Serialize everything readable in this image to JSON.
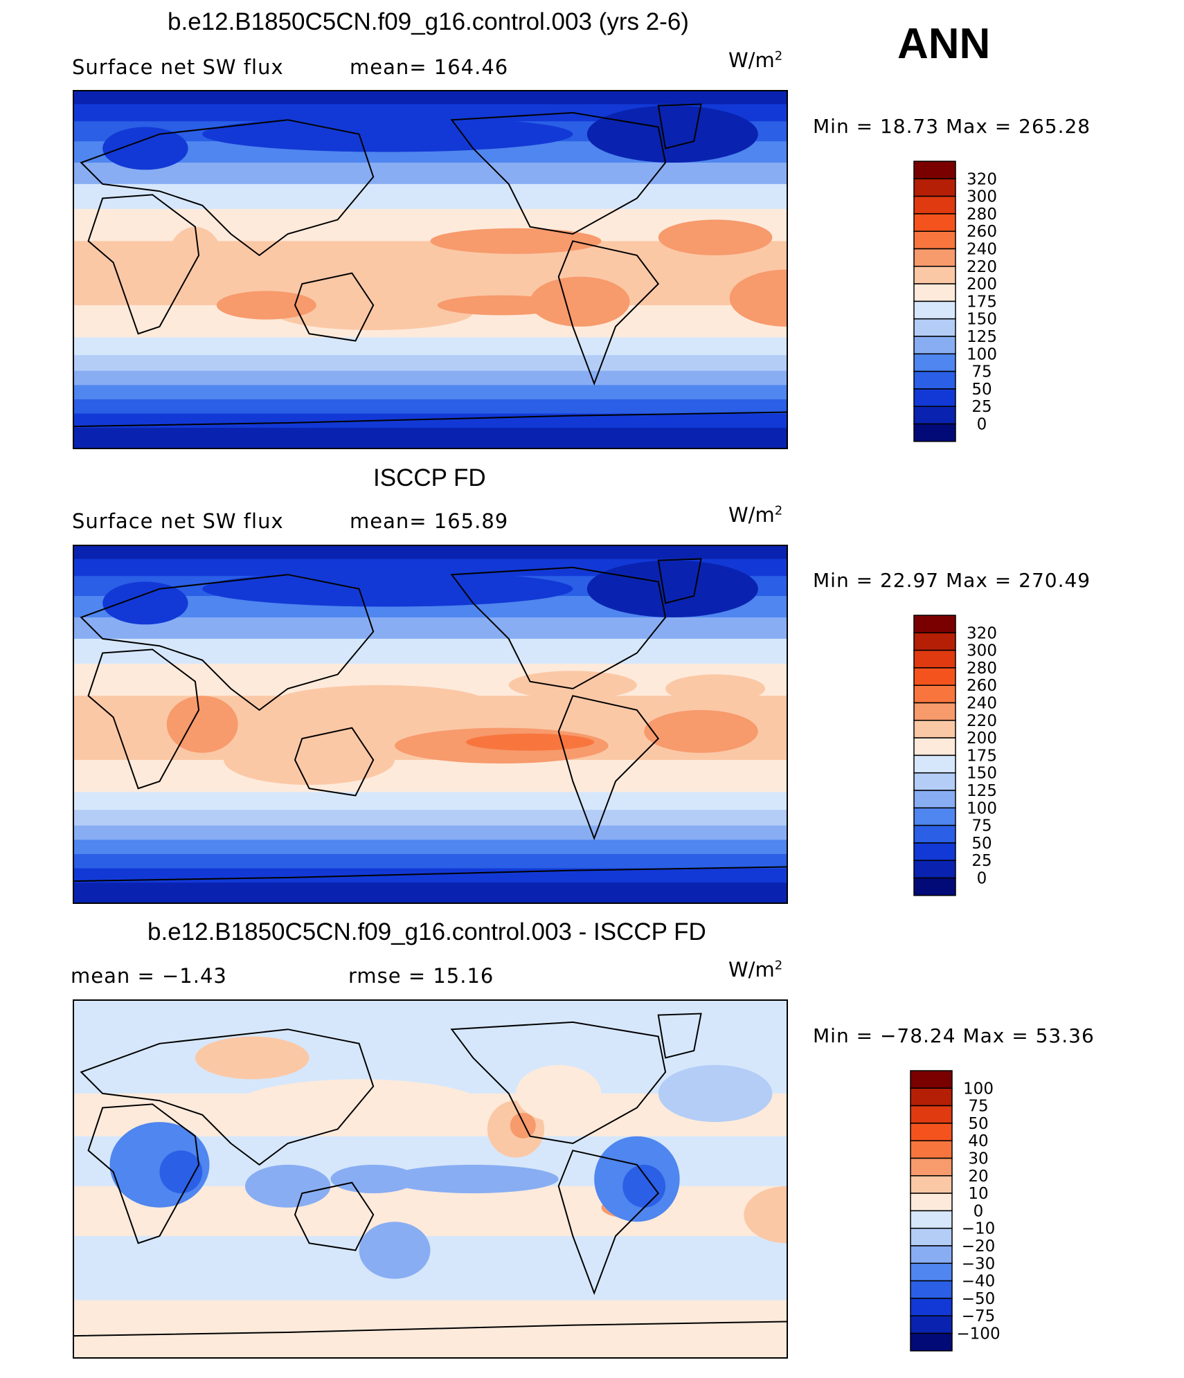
{
  "season": "ANN",
  "panels": [
    {
      "title": "b.e12.B1850C5CN.f09_g16.control.003 (yrs 2-6)",
      "left_label": "Surface net SW flux",
      "mid_label": "mean=  164.46",
      "units_base": "W/m",
      "units_exp": "2",
      "minmax": "Min =   18.73  Max  =  265.28",
      "colorbar": {
        "levels": [
          "320",
          "300",
          "280",
          "260",
          "240",
          "220",
          "200",
          "175",
          "150",
          "125",
          "100",
          "75",
          "50",
          "25",
          "0"
        ],
        "colors": [
          "#7a0000",
          "#b51f05",
          "#df3a10",
          "#f5531e",
          "#f8763e",
          "#f79a6c",
          "#fbc8a6",
          "#fdeadb",
          "#d6e7fb",
          "#b3cdf7",
          "#88adf3",
          "#4f86ef",
          "#2a5fe6",
          "#1239d6",
          "#0923b0",
          "#020a78"
        ]
      },
      "field": "model"
    },
    {
      "title": "ISCCP FD",
      "left_label": "Surface net SW flux",
      "mid_label": "mean=  165.89",
      "units_base": "W/m",
      "units_exp": "2",
      "minmax": "Min =   22.97  Max  =  270.49",
      "colorbar": {
        "levels": [
          "320",
          "300",
          "280",
          "260",
          "240",
          "220",
          "200",
          "175",
          "150",
          "125",
          "100",
          "75",
          "50",
          "25",
          "0"
        ],
        "colors": [
          "#7a0000",
          "#b51f05",
          "#df3a10",
          "#f5531e",
          "#f8763e",
          "#f79a6c",
          "#fbc8a6",
          "#fdeadb",
          "#d6e7fb",
          "#b3cdf7",
          "#88adf3",
          "#4f86ef",
          "#2a5fe6",
          "#1239d6",
          "#0923b0",
          "#020a78"
        ]
      },
      "field": "obs"
    },
    {
      "title": "b.e12.B1850C5CN.f09_g16.control.003 - ISCCP FD",
      "left_label": "mean =   −1.43",
      "mid_label": "rmse =   15.16",
      "units_base": "W/m",
      "units_exp": "2",
      "minmax": "Min = −78.24  Max  =   53.36",
      "colorbar": {
        "levels": [
          "100",
          "75",
          "50",
          "40",
          "30",
          "20",
          "10",
          "0",
          "−10",
          "−20",
          "−30",
          "−40",
          "−50",
          "−75",
          "−100"
        ],
        "colors": [
          "#7a0000",
          "#b51f05",
          "#df3a10",
          "#f5531e",
          "#f8763e",
          "#f79a6c",
          "#fbc8a6",
          "#fdeadb",
          "#d6e7fb",
          "#b3cdf7",
          "#88adf3",
          "#4f86ef",
          "#2a5fe6",
          "#1239d6",
          "#0923b0",
          "#020a78"
        ]
      },
      "field": "diff"
    }
  ]
}
